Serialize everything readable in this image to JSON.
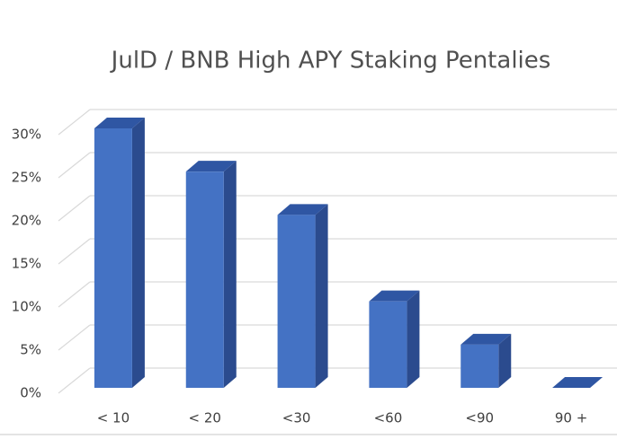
{
  "chart_data": {
    "type": "bar3d",
    "title": "JulD / BNB High APY Staking Pentalies",
    "categories": [
      "< 10",
      "< 20",
      "<30",
      "<60",
      "<90",
      "90 +"
    ],
    "values": [
      30,
      25,
      20,
      10,
      5,
      0
    ],
    "color": "#4472c4",
    "ylim": [
      0,
      30
    ],
    "yticks": [
      {
        "value": 0,
        "label": "0%"
      },
      {
        "value": 5,
        "label": "5%"
      },
      {
        "value": 10,
        "label": "10%"
      },
      {
        "value": 15,
        "label": "15%"
      },
      {
        "value": 20,
        "label": "20%"
      },
      {
        "value": 25,
        "label": "25%"
      },
      {
        "value": 30,
        "label": "30%"
      }
    ],
    "grid": true
  }
}
